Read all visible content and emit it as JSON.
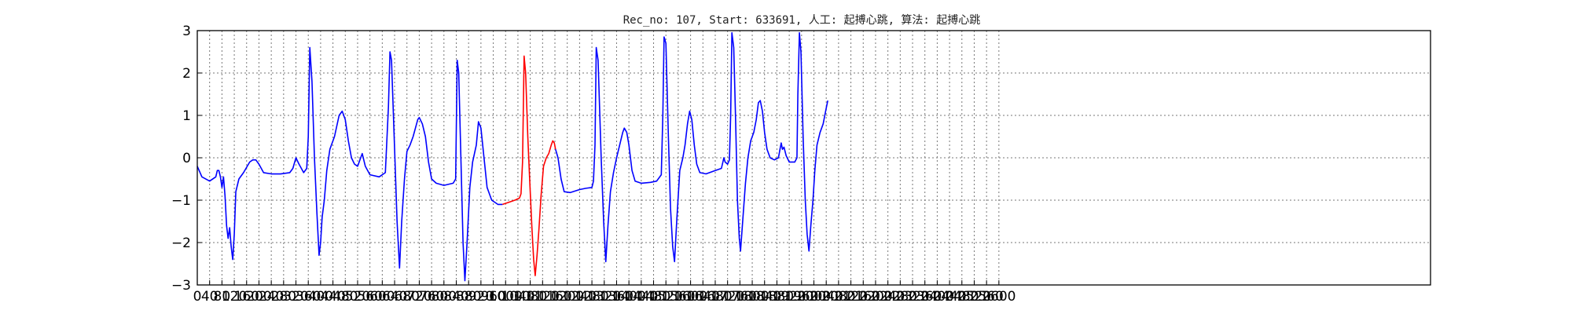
{
  "chart_data": {
    "type": "line",
    "title": "Rec_no: 107, Start: 633691, 人工: 起搏心跳, 算法: 起搏心跳",
    "xlabel": "",
    "ylabel": "",
    "xlim": [
      0,
      4000
    ],
    "ylim": [
      -3,
      3
    ],
    "grid": true,
    "yticks": [
      3,
      2,
      1,
      0,
      -1,
      -2,
      -3
    ],
    "xtick_values": [
      0,
      40,
      80,
      120,
      160,
      200,
      240,
      280,
      320,
      360,
      400,
      440,
      480,
      520,
      560,
      600,
      640,
      680,
      720,
      760,
      800,
      840,
      880,
      920,
      960,
      1000,
      1040,
      1080,
      1120,
      1160,
      1200,
      1240,
      1280,
      1320,
      1360,
      1400,
      1440,
      1480,
      1520,
      1560,
      1600,
      1640,
      1680,
      1720,
      1760,
      1800,
      1840,
      1880,
      1920,
      1960,
      2000,
      2040,
      2080,
      2120,
      2160,
      2200,
      2240,
      2280,
      2320,
      2360,
      2400,
      2440,
      2480,
      2520,
      2560,
      2600
    ],
    "series": [
      {
        "color": "#0000ff",
        "points": [
          [
            0,
            -0.2
          ],
          [
            15,
            -0.45
          ],
          [
            40,
            -0.55
          ],
          [
            60,
            -0.45
          ],
          [
            65,
            -0.3
          ],
          [
            70,
            -0.3
          ],
          [
            75,
            -0.45
          ],
          [
            80,
            -0.7
          ],
          [
            85,
            -0.45
          ],
          [
            90,
            -0.9
          ],
          [
            95,
            -1.6
          ],
          [
            100,
            -1.9
          ],
          [
            105,
            -1.65
          ],
          [
            110,
            -2.1
          ],
          [
            115,
            -2.4
          ],
          [
            120,
            -1.8
          ],
          [
            125,
            -0.8
          ],
          [
            135,
            -0.5
          ],
          [
            150,
            -0.35
          ],
          [
            170,
            -0.1
          ],
          [
            180,
            -0.05
          ],
          [
            190,
            -0.05
          ],
          [
            200,
            -0.15
          ],
          [
            215,
            -0.35
          ],
          [
            240,
            -0.38
          ],
          [
            270,
            -0.38
          ],
          [
            300,
            -0.35
          ],
          [
            310,
            -0.25
          ],
          [
            320,
            0.0
          ],
          [
            330,
            -0.15
          ],
          [
            345,
            -0.35
          ],
          [
            355,
            -0.25
          ],
          [
            360,
            0.5
          ],
          [
            365,
            2.6
          ],
          [
            372,
            1.8
          ],
          [
            380,
            0.0
          ],
          [
            388,
            -1.3
          ],
          [
            395,
            -2.3
          ],
          [
            400,
            -2.0
          ],
          [
            405,
            -1.4
          ],
          [
            412,
            -1.0
          ],
          [
            420,
            -0.3
          ],
          [
            430,
            0.2
          ],
          [
            445,
            0.5
          ],
          [
            460,
            1.0
          ],
          [
            470,
            1.1
          ],
          [
            480,
            0.9
          ],
          [
            490,
            0.4
          ],
          [
            500,
            0.0
          ],
          [
            510,
            -0.15
          ],
          [
            520,
            -0.2
          ],
          [
            530,
            0.0
          ],
          [
            535,
            0.1
          ],
          [
            545,
            -0.2
          ],
          [
            560,
            -0.4
          ],
          [
            590,
            -0.45
          ],
          [
            610,
            -0.35
          ],
          [
            620,
            1.2
          ],
          [
            625,
            2.5
          ],
          [
            630,
            2.3
          ],
          [
            640,
            0.2
          ],
          [
            648,
            -1.5
          ],
          [
            656,
            -2.6
          ],
          [
            663,
            -1.5
          ],
          [
            672,
            -0.5
          ],
          [
            680,
            0.15
          ],
          [
            690,
            0.3
          ],
          [
            700,
            0.5
          ],
          [
            715,
            0.9
          ],
          [
            720,
            0.95
          ],
          [
            730,
            0.8
          ],
          [
            740,
            0.5
          ],
          [
            750,
            -0.1
          ],
          [
            760,
            -0.5
          ],
          [
            775,
            -0.6
          ],
          [
            800,
            -0.65
          ],
          [
            830,
            -0.6
          ],
          [
            838,
            -0.5
          ],
          [
            843,
            2.3
          ],
          [
            848,
            2.0
          ],
          [
            855,
            0.0
          ],
          [
            862,
            -2.0
          ],
          [
            868,
            -2.9
          ],
          [
            875,
            -2.0
          ],
          [
            884,
            -0.7
          ],
          [
            893,
            -0.1
          ],
          [
            905,
            0.3
          ],
          [
            912,
            0.85
          ],
          [
            920,
            0.7
          ],
          [
            930,
            0.0
          ],
          [
            940,
            -0.7
          ],
          [
            955,
            -1.0
          ],
          [
            975,
            -1.1
          ],
          [
            990,
            -1.1
          ]
        ]
      },
      {
        "color": "#ff0000",
        "points": [
          [
            990,
            -1.1
          ],
          [
            1010,
            -1.05
          ],
          [
            1030,
            -1.0
          ],
          [
            1045,
            -0.95
          ],
          [
            1050,
            -0.85
          ],
          [
            1055,
            -0.1
          ],
          [
            1060,
            2.4
          ],
          [
            1065,
            2.0
          ],
          [
            1072,
            0.5
          ],
          [
            1078,
            -0.5
          ],
          [
            1085,
            -1.6
          ],
          [
            1091,
            -2.4
          ],
          [
            1096,
            -2.78
          ],
          [
            1102,
            -2.3
          ],
          [
            1108,
            -1.7
          ],
          [
            1115,
            -0.9
          ],
          [
            1123,
            -0.2
          ],
          [
            1132,
            0.0
          ],
          [
            1140,
            0.1
          ],
          [
            1148,
            0.3
          ],
          [
            1153,
            0.4
          ],
          [
            1158,
            0.35
          ],
          [
            1162,
            0.2
          ]
        ]
      },
      {
        "color": "#0000ff",
        "points": [
          [
            1162,
            0.2
          ],
          [
            1170,
            0.0
          ],
          [
            1180,
            -0.5
          ],
          [
            1190,
            -0.8
          ],
          [
            1210,
            -0.82
          ],
          [
            1240,
            -0.75
          ],
          [
            1260,
            -0.72
          ],
          [
            1280,
            -0.7
          ],
          [
            1285,
            -0.55
          ],
          [
            1290,
            0.3
          ],
          [
            1294,
            2.6
          ],
          [
            1300,
            2.3
          ],
          [
            1310,
            0.0
          ],
          [
            1318,
            -1.5
          ],
          [
            1325,
            -2.45
          ],
          [
            1332,
            -1.6
          ],
          [
            1340,
            -0.8
          ],
          [
            1350,
            -0.35
          ],
          [
            1360,
            0.0
          ],
          [
            1370,
            0.3
          ],
          [
            1380,
            0.6
          ],
          [
            1385,
            0.7
          ],
          [
            1393,
            0.6
          ],
          [
            1400,
            0.3
          ],
          [
            1410,
            -0.3
          ],
          [
            1420,
            -0.55
          ],
          [
            1440,
            -0.6
          ],
          [
            1470,
            -0.58
          ],
          [
            1490,
            -0.55
          ],
          [
            1505,
            -0.4
          ],
          [
            1510,
            1.0
          ],
          [
            1514,
            2.85
          ],
          [
            1520,
            2.7
          ],
          [
            1528,
            0.5
          ],
          [
            1535,
            -1.2
          ],
          [
            1542,
            -2.1
          ],
          [
            1548,
            -2.45
          ],
          [
            1555,
            -1.5
          ],
          [
            1565,
            -0.3
          ],
          [
            1575,
            0.0
          ],
          [
            1582,
            0.3
          ],
          [
            1590,
            0.8
          ],
          [
            1597,
            1.1
          ],
          [
            1604,
            0.9
          ],
          [
            1612,
            0.3
          ],
          [
            1620,
            -0.15
          ],
          [
            1630,
            -0.35
          ],
          [
            1650,
            -0.38
          ],
          [
            1680,
            -0.3
          ],
          [
            1700,
            -0.25
          ],
          [
            1708,
            0.0
          ],
          [
            1712,
            -0.1
          ],
          [
            1720,
            -0.15
          ],
          [
            1726,
            -0.05
          ],
          [
            1730,
            1.0
          ],
          [
            1734,
            2.95
          ],
          [
            1740,
            2.6
          ],
          [
            1746,
            0.9
          ],
          [
            1752,
            -1.0
          ],
          [
            1758,
            -1.9
          ],
          [
            1762,
            -2.2
          ],
          [
            1770,
            -1.4
          ],
          [
            1778,
            -0.6
          ],
          [
            1786,
            0.0
          ],
          [
            1795,
            0.4
          ],
          [
            1805,
            0.6
          ],
          [
            1813,
            0.9
          ],
          [
            1820,
            1.3
          ],
          [
            1826,
            1.35
          ],
          [
            1833,
            1.1
          ],
          [
            1840,
            0.6
          ],
          [
            1848,
            0.2
          ],
          [
            1858,
            0.0
          ],
          [
            1872,
            -0.05
          ],
          [
            1885,
            0.0
          ],
          [
            1890,
            0.2
          ],
          [
            1894,
            0.35
          ],
          [
            1898,
            0.2
          ],
          [
            1903,
            0.25
          ],
          [
            1910,
            0.05
          ],
          [
            1920,
            -0.1
          ],
          [
            1938,
            -0.1
          ],
          [
            1945,
            0.0
          ],
          [
            1948,
            1.5
          ],
          [
            1953,
            2.95
          ],
          [
            1958,
            2.5
          ],
          [
            1965,
            0.5
          ],
          [
            1972,
            -1.0
          ],
          [
            1978,
            -1.8
          ],
          [
            1984,
            -2.2
          ],
          [
            1990,
            -1.6
          ],
          [
            1997,
            -1.0
          ],
          [
            2003,
            -0.3
          ],
          [
            2010,
            0.3
          ],
          [
            2020,
            0.6
          ],
          [
            2030,
            0.8
          ],
          [
            2038,
            1.1
          ],
          [
            2045,
            1.35
          ]
        ]
      }
    ]
  }
}
